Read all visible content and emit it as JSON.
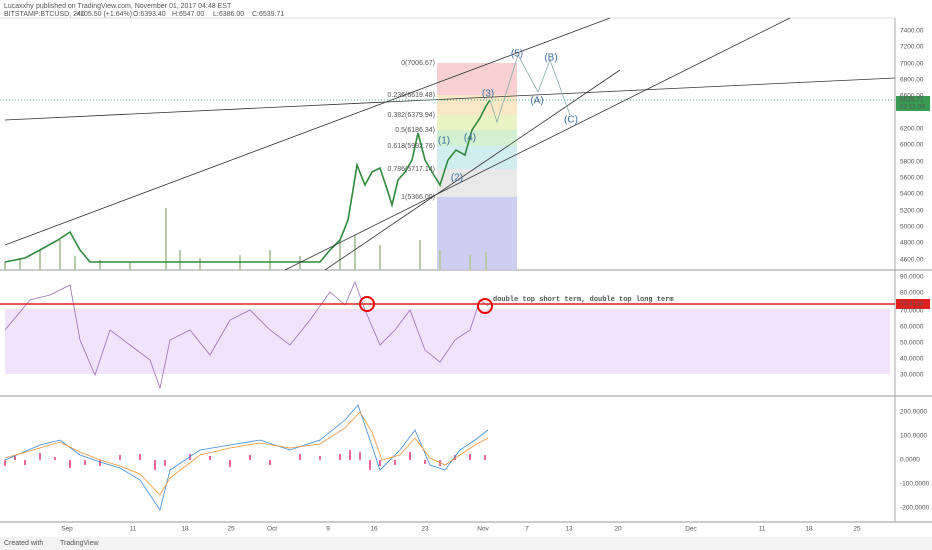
{
  "header": {
    "author": "Lucaxxhy",
    "published": "published on TradingView.com, November 01, 2017 04:48 EST"
  },
  "ticker": {
    "symbol": "BITSTAMP:BTCUSD, 240",
    "change": "+105.50 (+1.64%)",
    "open": "O:6393.40",
    "high": "H:6547.00",
    "low": "L:6386.00",
    "close": "C:6539.71"
  },
  "price_axis": [
    "7400.00",
    "7200.00",
    "7000.00",
    "6800.00",
    "6600.00",
    "6200.00",
    "6000.00",
    "5800.00",
    "5600.00",
    "5400.00",
    "5200.00",
    "5000.00",
    "4800.00",
    "4600.00"
  ],
  "last_price": {
    "price": "6539.71",
    "countdown": "02:11:09"
  },
  "fib_levels": [
    "0(7006.67)",
    "0.236(6619.48)",
    "0.382(6379.94)",
    "0.5(6186.34)",
    "0.618(5992.76)",
    "0.786(5717.14)",
    "1(5366.00)"
  ],
  "waves": [
    "(5)",
    "(B)",
    "(A)",
    "(C)",
    "(3)",
    "(4)",
    "(1)",
    "(2)"
  ],
  "rsi_axis": [
    "90.0000",
    "80.0000",
    "70.0000",
    "60.0000",
    "50.0000",
    "40.0000",
    "30.0000"
  ],
  "rsi_current": "73.4138",
  "annotation": "double top short term, double top long term",
  "macd_axis": [
    "200.0000",
    "100.0000",
    "0.0000",
    "-100.0000",
    "-200.0000"
  ],
  "time_axis": [
    "Sep",
    "11",
    "18",
    "25",
    "Oct",
    "9",
    "16",
    "23",
    "Nov",
    "7",
    "13",
    "20",
    "Dec",
    "11",
    "18",
    "25"
  ],
  "footer": {
    "created": "Created with",
    "brand": "TradingView"
  }
}
